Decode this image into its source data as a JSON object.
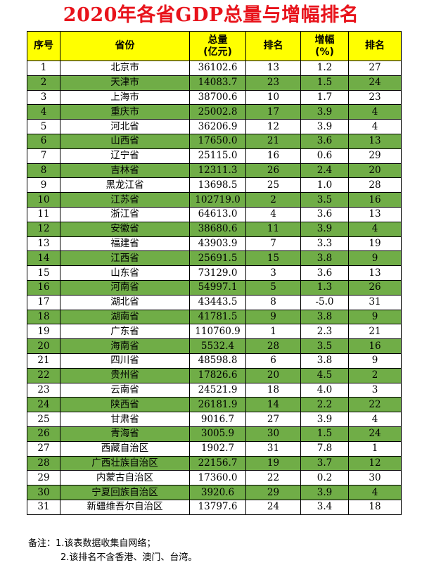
{
  "title": "2020年各省GDP总量与增幅排名",
  "headers": {
    "index": "序号",
    "province": "省份",
    "gdp_line1": "总量",
    "gdp_line2": "(亿元)",
    "gdp_rank": "排名",
    "growth_line1": "增幅",
    "growth_line2": "(%)",
    "growth_rank": "排名"
  },
  "rows": [
    {
      "index": "1",
      "province": "北京市",
      "gdp": "36102.6",
      "gdp_rank": "13",
      "growth": "1.2",
      "growth_rank": "27"
    },
    {
      "index": "2",
      "province": "天津市",
      "gdp": "14083.7",
      "gdp_rank": "23",
      "growth": "1.5",
      "growth_rank": "24"
    },
    {
      "index": "3",
      "province": "上海市",
      "gdp": "38700.6",
      "gdp_rank": "10",
      "growth": "1.7",
      "growth_rank": "23"
    },
    {
      "index": "4",
      "province": "重庆市",
      "gdp": "25002.8",
      "gdp_rank": "17",
      "growth": "3.9",
      "growth_rank": "4"
    },
    {
      "index": "5",
      "province": "河北省",
      "gdp": "36206.9",
      "gdp_rank": "12",
      "growth": "3.9",
      "growth_rank": "4"
    },
    {
      "index": "6",
      "province": "山西省",
      "gdp": "17650.0",
      "gdp_rank": "21",
      "growth": "3.6",
      "growth_rank": "13"
    },
    {
      "index": "7",
      "province": "辽宁省",
      "gdp": "25115.0",
      "gdp_rank": "16",
      "growth": "0.6",
      "growth_rank": "29"
    },
    {
      "index": "8",
      "province": "吉林省",
      "gdp": "12311.3",
      "gdp_rank": "26",
      "growth": "2.4",
      "growth_rank": "20"
    },
    {
      "index": "9",
      "province": "黑龙江省",
      "gdp": "13698.5",
      "gdp_rank": "25",
      "growth": "1.0",
      "growth_rank": "28"
    },
    {
      "index": "10",
      "province": "江苏省",
      "gdp": "102719.0",
      "gdp_rank": "2",
      "growth": "3.5",
      "growth_rank": "16"
    },
    {
      "index": "11",
      "province": "浙江省",
      "gdp": "64613.0",
      "gdp_rank": "4",
      "growth": "3.6",
      "growth_rank": "13"
    },
    {
      "index": "12",
      "province": "安徽省",
      "gdp": "38680.6",
      "gdp_rank": "11",
      "growth": "3.9",
      "growth_rank": "4"
    },
    {
      "index": "13",
      "province": "福建省",
      "gdp": "43903.9",
      "gdp_rank": "7",
      "growth": "3.3",
      "growth_rank": "19"
    },
    {
      "index": "14",
      "province": "江西省",
      "gdp": "25691.5",
      "gdp_rank": "15",
      "growth": "3.8",
      "growth_rank": "9"
    },
    {
      "index": "15",
      "province": "山东省",
      "gdp": "73129.0",
      "gdp_rank": "3",
      "growth": "3.6",
      "growth_rank": "13"
    },
    {
      "index": "16",
      "province": "河南省",
      "gdp": "54997.1",
      "gdp_rank": "5",
      "growth": "1.3",
      "growth_rank": "26"
    },
    {
      "index": "17",
      "province": "湖北省",
      "gdp": "43443.5",
      "gdp_rank": "8",
      "growth": "-5.0",
      "growth_rank": "31"
    },
    {
      "index": "18",
      "province": "湖南省",
      "gdp": "41781.5",
      "gdp_rank": "9",
      "growth": "3.8",
      "growth_rank": "9"
    },
    {
      "index": "19",
      "province": "广东省",
      "gdp": "110760.9",
      "gdp_rank": "1",
      "growth": "2.3",
      "growth_rank": "21"
    },
    {
      "index": "20",
      "province": "海南省",
      "gdp": "5532.4",
      "gdp_rank": "28",
      "growth": "3.5",
      "growth_rank": "16"
    },
    {
      "index": "21",
      "province": "四川省",
      "gdp": "48598.8",
      "gdp_rank": "6",
      "growth": "3.8",
      "growth_rank": "9"
    },
    {
      "index": "22",
      "province": "贵州省",
      "gdp": "17826.6",
      "gdp_rank": "20",
      "growth": "4.5",
      "growth_rank": "2"
    },
    {
      "index": "23",
      "province": "云南省",
      "gdp": "24521.9",
      "gdp_rank": "18",
      "growth": "4.0",
      "growth_rank": "3"
    },
    {
      "index": "24",
      "province": "陕西省",
      "gdp": "26181.9",
      "gdp_rank": "14",
      "growth": "2.2",
      "growth_rank": "22"
    },
    {
      "index": "25",
      "province": "甘肃省",
      "gdp": "9016.7",
      "gdp_rank": "27",
      "growth": "3.9",
      "growth_rank": "4"
    },
    {
      "index": "26",
      "province": "青海省",
      "gdp": "3005.9",
      "gdp_rank": "30",
      "growth": "1.5",
      "growth_rank": "24"
    },
    {
      "index": "27",
      "province": "西藏自治区",
      "gdp": "1902.7",
      "gdp_rank": "31",
      "growth": "7.8",
      "growth_rank": "1"
    },
    {
      "index": "28",
      "province": "广西壮族自治区",
      "gdp": "22156.7",
      "gdp_rank": "19",
      "growth": "3.7",
      "growth_rank": "12"
    },
    {
      "index": "29",
      "province": "内蒙古自治区",
      "gdp": "17360.0",
      "gdp_rank": "22",
      "growth": "0.2",
      "growth_rank": "30"
    },
    {
      "index": "30",
      "province": "宁夏回族自治区",
      "gdp": "3920.6",
      "gdp_rank": "29",
      "growth": "3.9",
      "growth_rank": "4"
    },
    {
      "index": "31",
      "province": "新疆维吾尔自治区",
      "gdp": "13797.6",
      "gdp_rank": "24",
      "growth": "3.4",
      "growth_rank": "18"
    }
  ],
  "notes": {
    "line1": "备注：1.该表数据收集自网络；",
    "line2": "2.该排名不含香港、澳门、台湾。"
  },
  "colors": {
    "title": "#e8131b",
    "header_bg": "#ffff00",
    "alt_row_bg": "#70ad47"
  }
}
